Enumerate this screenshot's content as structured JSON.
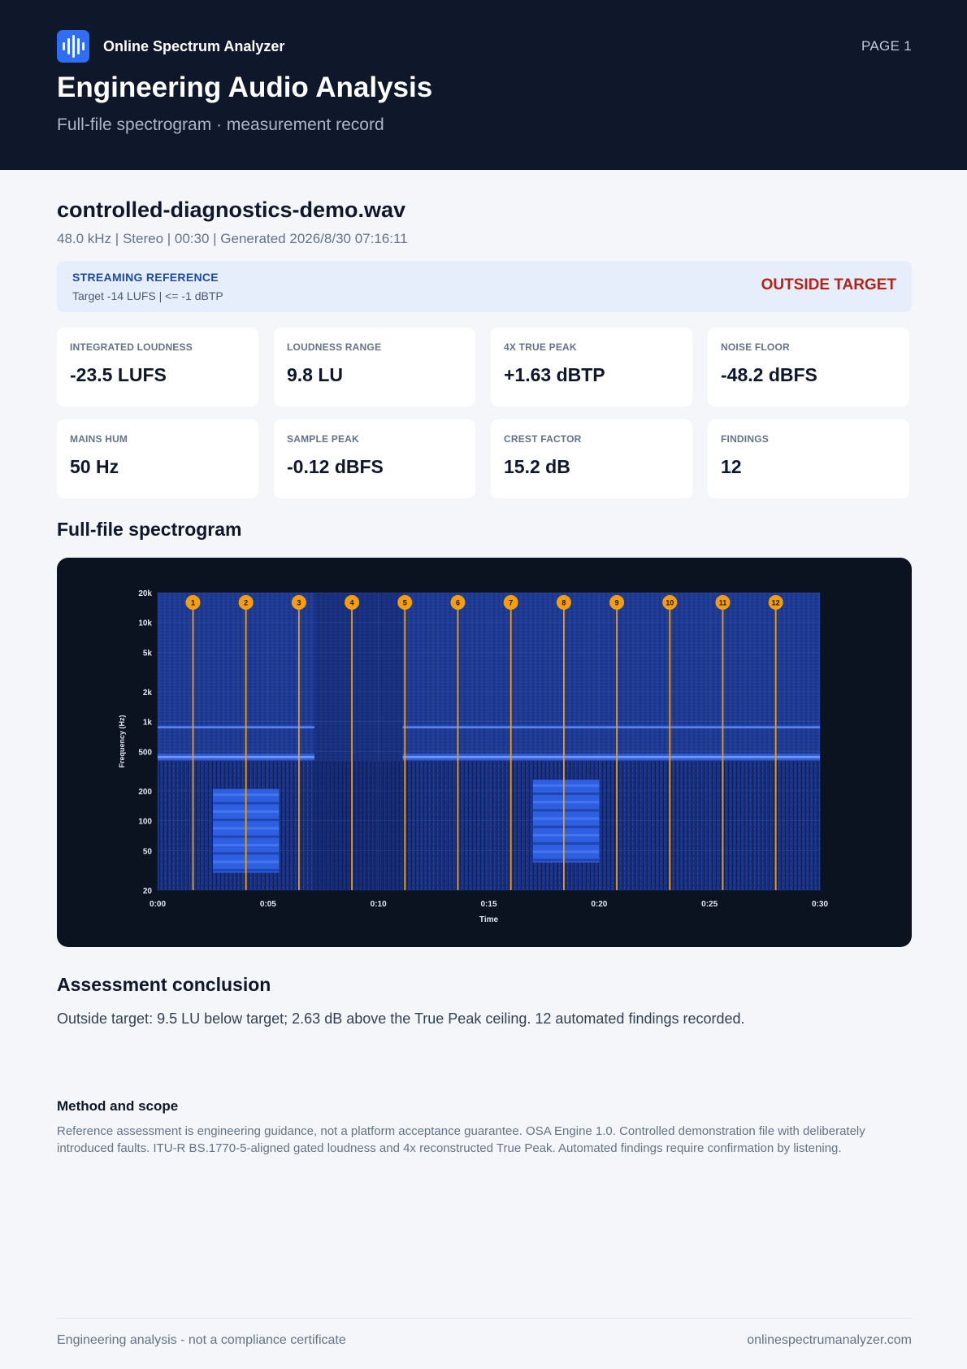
{
  "header": {
    "brand": "Online Spectrum Analyzer",
    "page": "PAGE 1",
    "title": "Engineering Audio Analysis",
    "subtitle": "Full-file spectrogram · measurement record",
    "logo_icon": "waveform-icon",
    "brand_color": "#2f6df5"
  },
  "file": {
    "name": "controlled-diagnostics-demo.wav",
    "meta": "48.0 kHz | Stereo | 00:30  |  Generated 2026/8/30 07:16:11"
  },
  "reference": {
    "title": "STREAMING REFERENCE",
    "target": "Target -14 LUFS | <= -1 dBTP",
    "status": "OUTSIDE TARGET",
    "status_color": "#b42318"
  },
  "metrics": [
    {
      "label": "INTEGRATED LOUDNESS",
      "value": "-23.5 LUFS"
    },
    {
      "label": "LOUDNESS RANGE",
      "value": "9.8 LU"
    },
    {
      "label": "4X TRUE PEAK",
      "value": "+1.63 dBTP"
    },
    {
      "label": "NOISE FLOOR",
      "value": "-48.2 dBFS"
    },
    {
      "label": "MAINS HUM",
      "value": "50 Hz"
    },
    {
      "label": "SAMPLE PEAK",
      "value": "-0.12 dBFS"
    },
    {
      "label": "CREST FACTOR",
      "value": "15.2 dB"
    },
    {
      "label": "FINDINGS",
      "value": "12"
    }
  ],
  "spectrogram": {
    "section_title": "Full-file spectrogram",
    "ylabel": "Frequency (Hz)",
    "xlabel": "Time"
  },
  "chart_data": {
    "type": "heatmap",
    "title": "",
    "xlabel": "Time",
    "ylabel": "Frequency (Hz)",
    "y_scale": "log",
    "xlim": [
      0,
      30
    ],
    "ylim": [
      20,
      20000
    ],
    "x_ticks": [
      {
        "value": 0,
        "label": "0:00"
      },
      {
        "value": 5,
        "label": "0:05"
      },
      {
        "value": 10,
        "label": "0:10"
      },
      {
        "value": 15,
        "label": "0:15"
      },
      {
        "value": 20,
        "label": "0:20"
      },
      {
        "value": 25,
        "label": "0:25"
      },
      {
        "value": 30,
        "label": "0:30"
      }
    ],
    "y_ticks": [
      {
        "value": 20000,
        "label": "20k"
      },
      {
        "value": 10000,
        "label": "10k"
      },
      {
        "value": 5000,
        "label": "5k"
      },
      {
        "value": 2000,
        "label": "2k"
      },
      {
        "value": 1000,
        "label": "1k"
      },
      {
        "value": 500,
        "label": "500"
      },
      {
        "value": 200,
        "label": "200"
      },
      {
        "value": 100,
        "label": "100"
      },
      {
        "value": 50,
        "label": "50"
      },
      {
        "value": 20,
        "label": "20"
      }
    ],
    "markers": [
      {
        "label": "1",
        "t": 1.6
      },
      {
        "label": "2",
        "t": 4.0
      },
      {
        "label": "3",
        "t": 6.4
      },
      {
        "label": "4",
        "t": 8.8
      },
      {
        "label": "5",
        "t": 11.2
      },
      {
        "label": "6",
        "t": 13.6
      },
      {
        "label": "7",
        "t": 16.0
      },
      {
        "label": "8",
        "t": 18.4
      },
      {
        "label": "9",
        "t": 20.8
      },
      {
        "label": "10",
        "t": 23.2
      },
      {
        "label": "11",
        "t": 25.6
      },
      {
        "label": "12",
        "t": 28.0
      }
    ],
    "tones": [
      {
        "freq": 440,
        "segments": [
          [
            0,
            7.1
          ],
          [
            11.1,
            30
          ]
        ]
      },
      {
        "freq": 880,
        "segments": [
          [
            0,
            7.1
          ],
          [
            11.1,
            30
          ]
        ]
      }
    ],
    "low_bursts": [
      {
        "t_start": 2.5,
        "t_end": 5.5,
        "f_low": 30,
        "f_high": 210
      },
      {
        "t_start": 17.0,
        "t_end": 20.0,
        "f_low": 38,
        "f_high": 260
      }
    ],
    "marker_color": "#f59e0b",
    "background_color": "#1e3a8a"
  },
  "conclusion": {
    "title": "Assessment conclusion",
    "text": "Outside target: 9.5 LU below target; 2.63 dB above the True Peak ceiling. 12 automated findings recorded."
  },
  "method": {
    "title": "Method and scope",
    "text": "Reference assessment is engineering guidance, not a platform acceptance guarantee. OSA Engine 1.0. Controlled demonstration file with deliberately introduced faults. ITU-R BS.1770-5-aligned gated loudness and 4x reconstructed True Peak. Automated findings require confirmation by listening."
  },
  "footer": {
    "left": "Engineering analysis - not a compliance certificate",
    "right": "onlinespectrumanalyzer.com"
  }
}
